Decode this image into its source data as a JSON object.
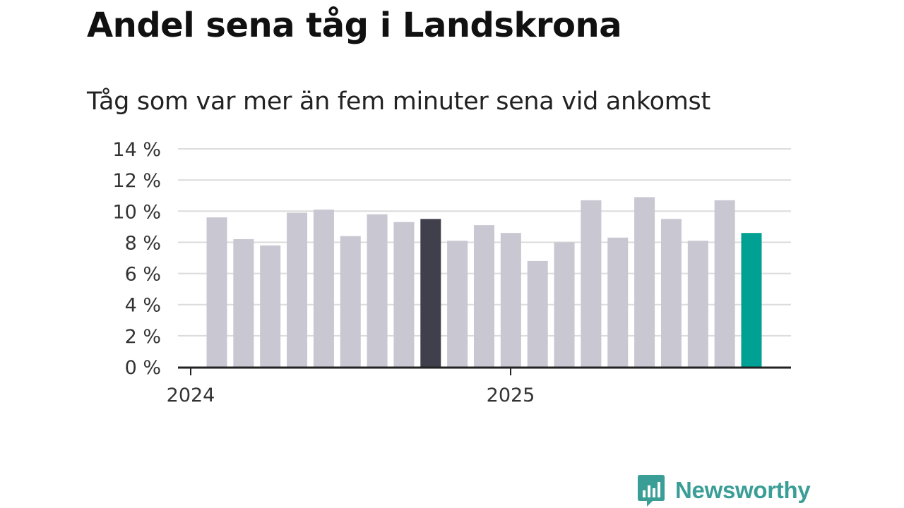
{
  "title": "Andel sena tåg i Landskrona",
  "subtitle": "Tåg som var mer än fem minuter sena vid ankomst",
  "brand": {
    "name": "Newsworthy",
    "icon": "bar-chart-logo-icon",
    "color": "#3a9e97"
  },
  "chart_data": {
    "type": "bar",
    "title": "Andel sena tåg i Landskrona",
    "subtitle": "Tåg som var mer än fem minuter sena vid ankomst",
    "ylim": [
      0,
      14
    ],
    "y_ticks": [
      0,
      2,
      4,
      6,
      8,
      10,
      12,
      14
    ],
    "y_tick_labels": [
      "0 %",
      "2 %",
      "4 %",
      "6 %",
      "8 %",
      "10 %",
      "12 %",
      "14 %"
    ],
    "x_tick_labels": [
      {
        "label": "2024",
        "index": 0
      },
      {
        "label": "2025",
        "index": 12
      }
    ],
    "grid": true,
    "colors": {
      "default": "#c8c7d2",
      "highlight_dark": "#403f4c",
      "highlight_latest": "#00a095",
      "grid": "#dcdcdc",
      "axis": "#222222"
    },
    "values": [
      9.6,
      8.2,
      7.8,
      9.9,
      10.1,
      8.4,
      9.8,
      9.3,
      9.5,
      8.1,
      9.1,
      8.6,
      6.8,
      8.0,
      10.7,
      8.3,
      10.9,
      9.5,
      8.1,
      10.7,
      8.6
    ],
    "highlights": [
      {
        "index": 8,
        "color": "#403f4c"
      },
      {
        "index": 20,
        "color": "#00a095"
      }
    ]
  }
}
